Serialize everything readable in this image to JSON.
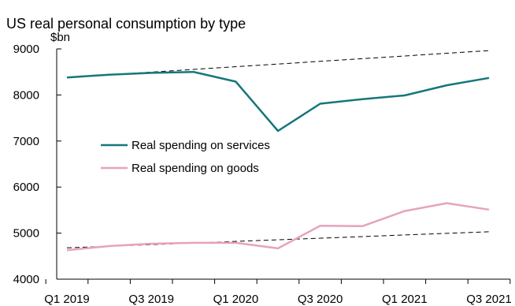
{
  "chart_data": {
    "type": "line",
    "title": "US real personal consumption by type",
    "ylabel": "$bn",
    "xlabel": "",
    "ylim": [
      4000,
      9000
    ],
    "yticks": [
      4000,
      5000,
      6000,
      7000,
      8000,
      9000
    ],
    "x": [
      "Q1 2019",
      "Q2 2019",
      "Q3 2019",
      "Q4 2019",
      "Q1 2020",
      "Q2 2020",
      "Q3 2020",
      "Q4 2020",
      "Q1 2021",
      "Q2 2021",
      "Q3 2021"
    ],
    "xtick_labels": [
      "Q1 2019",
      "Q3 2019",
      "Q1 2020",
      "Q3 2020",
      "Q1 2021",
      "Q3 2021"
    ],
    "series": [
      {
        "name": "Real spending on services",
        "color": "#16777a",
        "style": "solid",
        "values": [
          8380,
          8440,
          8480,
          8500,
          8290,
          7220,
          7810,
          7910,
          7990,
          8210,
          8370
        ]
      },
      {
        "name": "Real spending on goods",
        "color": "#e7a2bf",
        "style": "solid",
        "values": [
          4630,
          4720,
          4770,
          4790,
          4790,
          4670,
          5160,
          5150,
          5480,
          5650,
          5510
        ]
      }
    ],
    "trend_lines": [
      {
        "color": "#000000",
        "style": "dashed",
        "values": [
          8380,
          8963
        ]
      },
      {
        "color": "#000000",
        "style": "dashed",
        "values": [
          4680,
          5030
        ]
      }
    ],
    "legend": {
      "placement": "center-left"
    },
    "grid": false
  }
}
